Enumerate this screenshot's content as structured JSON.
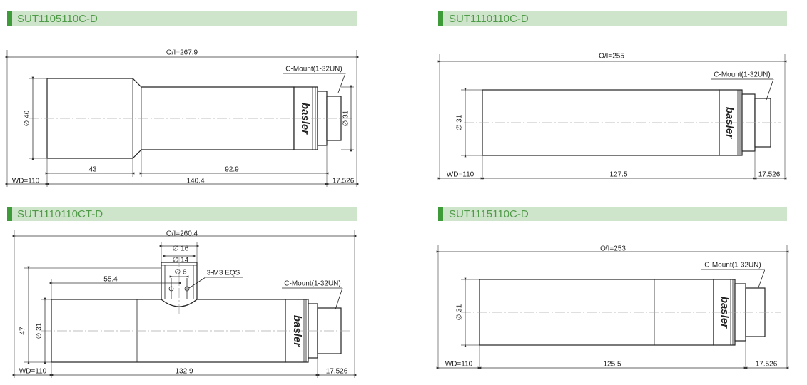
{
  "panels": [
    {
      "title": "SUT1105110C-D",
      "overall": "O/I=267.9",
      "mount": "C-Mount(1-32UN)",
      "brand": "basler",
      "diameter_body": "∅ 40",
      "diameter_mount": "∅ 31",
      "dim_front": "43",
      "dim_rear": "92.9",
      "wd": "WD=110",
      "length": "140.4",
      "flange": "17.526"
    },
    {
      "title": "SUT1110110C-D",
      "overall": "O/I=255",
      "mount": "C-Mount(1-32UN)",
      "brand": "basler",
      "diameter_body": "∅ 31",
      "wd": "WD=110",
      "length": "127.5",
      "flange": "17.526"
    },
    {
      "title": "SUT1110110CT-D",
      "overall": "O/I=260.4",
      "mount": "C-Mount(1-32UN)",
      "brand": "basler",
      "port_outer": "∅ 16",
      "port_inner": "∅ 14",
      "port_hole": "∅ 8",
      "thread_note": "3-M3 EQS",
      "port_offset": "55.4",
      "height": "47",
      "diameter_body": "∅ 31",
      "wd": "WD=110",
      "length": "132.9",
      "flange": "17.526"
    },
    {
      "title": "SUT1115110C-D",
      "overall": "O/I=253",
      "mount": "C-Mount(1-32UN)",
      "brand": "basler",
      "diameter_body": "∅ 31",
      "wd": "WD=110",
      "length": "125.5",
      "flange": "17.526"
    }
  ]
}
